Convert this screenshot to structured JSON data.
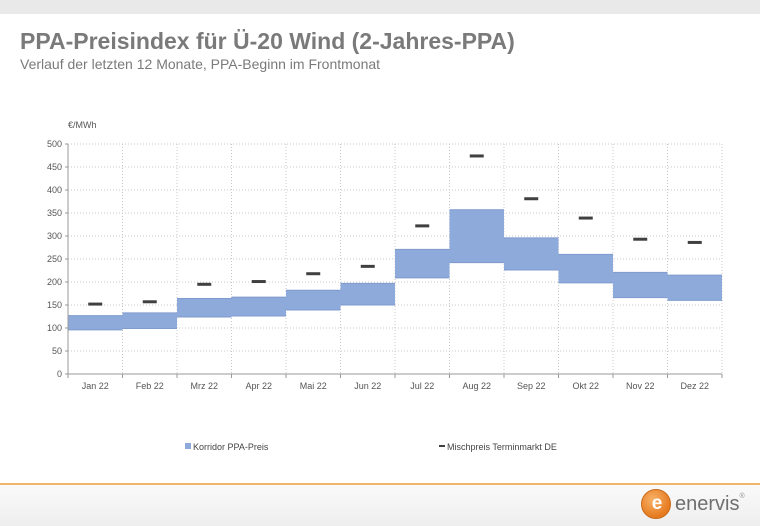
{
  "header": {
    "title": "PPA-Preisindex für Ü-20 Wind (2-Jahres-PPA)",
    "subtitle": "Verlauf der letzten 12 Monate, PPA-Beginn im Frontmonat"
  },
  "chart_data": {
    "type": "bar",
    "ylabel": "€/MWh",
    "ylim": [
      0,
      500
    ],
    "yticks": [
      0,
      50,
      100,
      150,
      200,
      250,
      300,
      350,
      400,
      450,
      500
    ],
    "grid": true,
    "legend_position": "bottom",
    "categories": [
      "Jan 22",
      "Feb 22",
      "Mrz 22",
      "Apr 22",
      "Mai 22",
      "Jun 22",
      "Jul 22",
      "Aug 22",
      "Sep 22",
      "Okt 22",
      "Nov 22",
      "Dez 22"
    ],
    "series": [
      {
        "name": "Korridor PPA-Preis",
        "kind": "range",
        "color": "#8eaadb",
        "low": [
          96,
          99,
          124,
          126,
          139,
          150,
          209,
          242,
          226,
          198,
          166,
          160
        ],
        "high": [
          127,
          133,
          164,
          167,
          182,
          197,
          271,
          357,
          296,
          260,
          221,
          215
        ]
      },
      {
        "name": "Mischpreis Terminmarkt DE",
        "kind": "marker",
        "color": "#404040",
        "values": [
          152,
          157,
          195,
          201,
          218,
          234,
          322,
          474,
          381,
          339,
          293,
          286
        ]
      }
    ]
  },
  "footer": {
    "logo_letter": "e",
    "logo_text": "enervis",
    "logo_reg": "®"
  }
}
